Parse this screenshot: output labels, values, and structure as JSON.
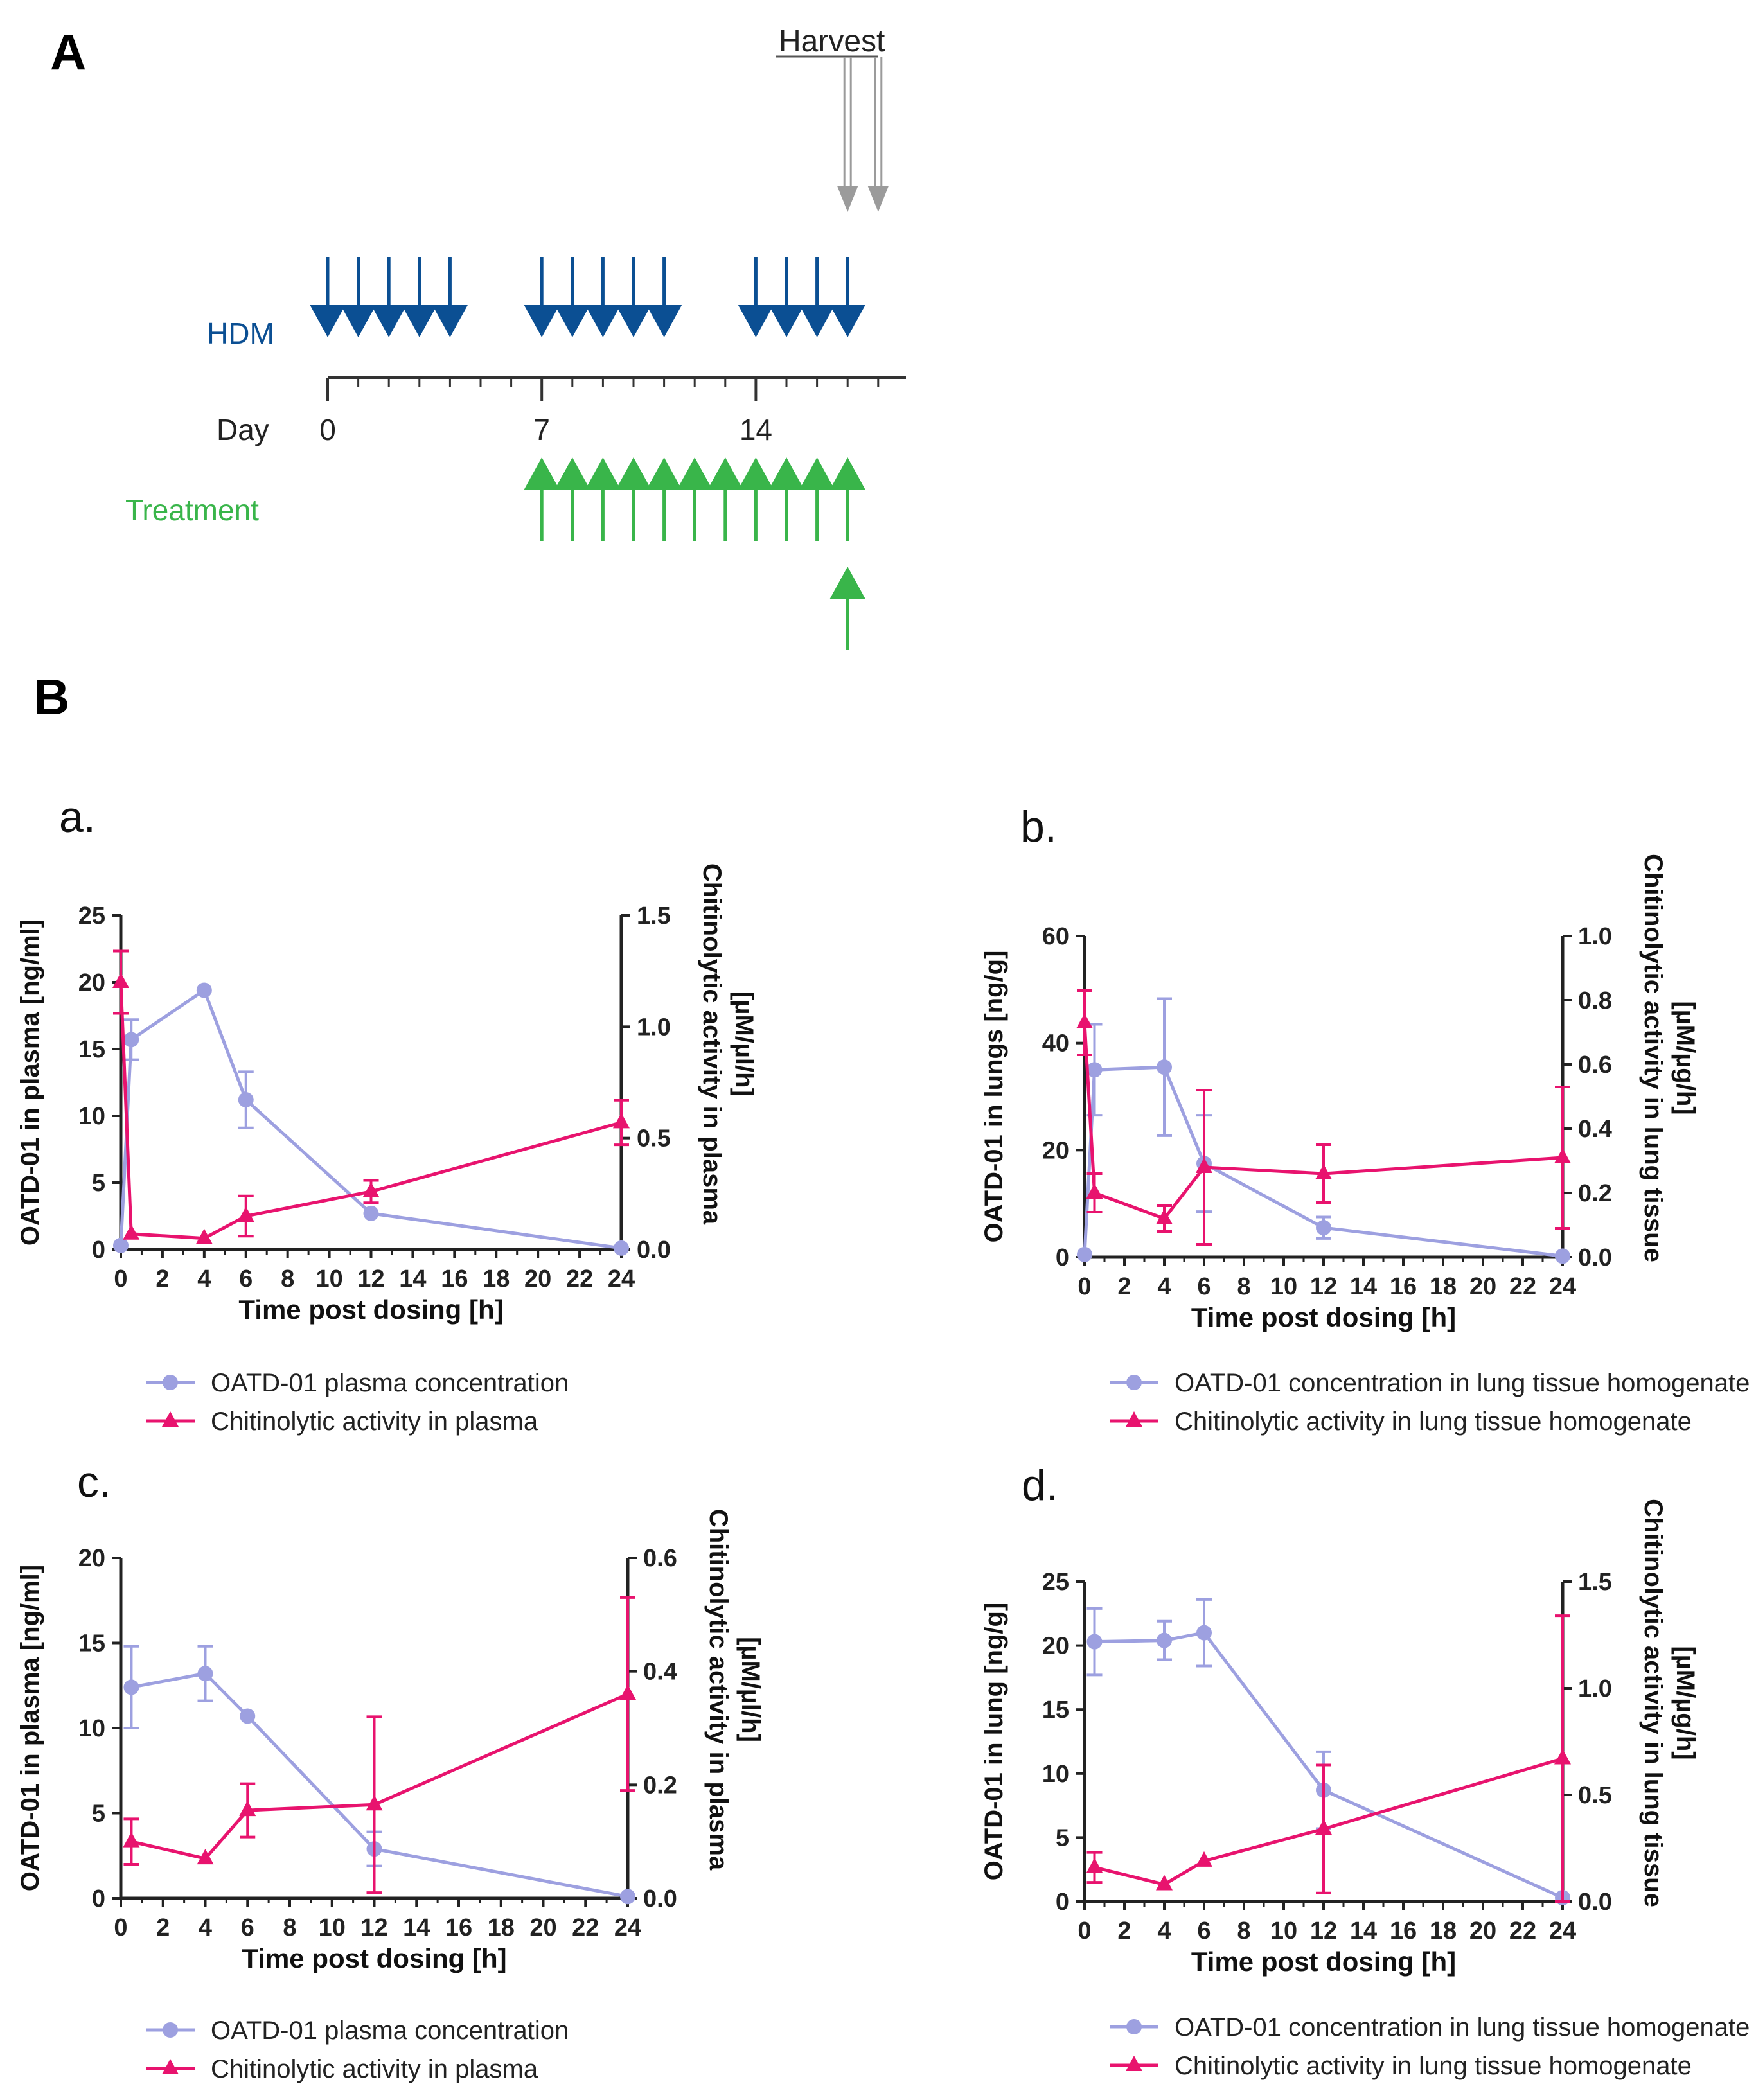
{
  "colors": {
    "hdm": "#0b4f93",
    "treat": "#39b54a",
    "harvest": "#9b9b9b",
    "conc": "#9da0e0",
    "chit": "#e8136e",
    "axis": "#222222"
  },
  "panelA": {
    "label": "A",
    "harvest_label": "Harvest",
    "hdm_label": "HDM",
    "day_label": "Day",
    "treatment_label": "Treatment",
    "day_ticks": [
      "0",
      "7",
      "14"
    ],
    "hdm_days": [
      0,
      1,
      2,
      3,
      4,
      7,
      8,
      9,
      10,
      11,
      14,
      15,
      16,
      17
    ],
    "treat_days": [
      7,
      8,
      9,
      10,
      11,
      12,
      13,
      14,
      15,
      16,
      17
    ],
    "treat_extra_day": 17,
    "harvest_days": [
      17,
      18
    ]
  },
  "panelB": {
    "label": "B"
  },
  "chart_data": [
    {
      "id": "a",
      "label": "a.",
      "type": "line",
      "xlabel": "Time post dosing [h]",
      "ylabel": "OATD-01 in plasma [ng/ml]",
      "y2label_line1": "Chitinolytic activity in plasma",
      "y2label_line2": "[µM/µl/h]",
      "xlim": [
        0,
        24
      ],
      "ylim": [
        0,
        25
      ],
      "y2lim": [
        0,
        1.5
      ],
      "xticks": [
        "0",
        "2",
        "4",
        "6",
        "8",
        "10",
        "12",
        "14",
        "16",
        "18",
        "20",
        "22",
        "24"
      ],
      "yticks": [
        "0",
        "5",
        "10",
        "15",
        "20",
        "25"
      ],
      "y2ticks": [
        "0.0",
        "0.5",
        "1.0",
        "1.5"
      ],
      "series": [
        {
          "name": "OATD-01 plasma concentration",
          "axis": "left",
          "marker": "circle",
          "x": [
            0,
            0.5,
            4,
            6,
            12,
            24
          ],
          "y": [
            0.3,
            15.7,
            19.4,
            11.2,
            2.7,
            0.1
          ],
          "err": [
            0,
            1.5,
            0,
            2.1,
            0,
            0
          ]
        },
        {
          "name": "Chitinolytic activity in plasma",
          "axis": "right",
          "marker": "triangle",
          "x": [
            0,
            0.5,
            4,
            6,
            12,
            24
          ],
          "y": [
            1.2,
            0.07,
            0.05,
            0.15,
            0.26,
            0.57
          ],
          "err": [
            0.14,
            0,
            0,
            0.09,
            0.05,
            0.1
          ]
        }
      ]
    },
    {
      "id": "b",
      "label": "b.",
      "type": "line",
      "xlabel": "Time post dosing [h]",
      "ylabel": "OATD-01 in lungs [ng/g]",
      "y2label_line1": "Chitinolytic activity in lung tissue",
      "y2label_line2": "[µM/µg/h]",
      "xlim": [
        0,
        24
      ],
      "ylim": [
        0,
        60
      ],
      "y2lim": [
        0,
        1.0
      ],
      "xticks": [
        "0",
        "2",
        "4",
        "6",
        "8",
        "10",
        "12",
        "14",
        "16",
        "18",
        "20",
        "22",
        "24"
      ],
      "yticks": [
        "0",
        "20",
        "40",
        "60"
      ],
      "y2ticks": [
        "0.0",
        "0.2",
        "0.4",
        "0.6",
        "0.8",
        "1.0"
      ],
      "series": [
        {
          "name": "OATD-01 concentration in lung tissue homogenate",
          "axis": "left",
          "marker": "circle",
          "x": [
            0,
            0.5,
            4,
            6,
            12,
            24
          ],
          "y": [
            0.5,
            35,
            35.5,
            17.5,
            5.5,
            0.2
          ],
          "err": [
            0,
            8.5,
            12.8,
            9,
            2,
            0
          ]
        },
        {
          "name": "Chitinolytic activity in lung tissue homogenate",
          "axis": "right",
          "marker": "triangle",
          "x": [
            0,
            0.5,
            4,
            6,
            12,
            24
          ],
          "y": [
            0.73,
            0.2,
            0.12,
            0.28,
            0.26,
            0.31
          ],
          "err": [
            0.1,
            0.06,
            0.04,
            0.24,
            0.09,
            0.22
          ]
        }
      ]
    },
    {
      "id": "c",
      "label": "c.",
      "type": "line",
      "xlabel": "Time post dosing [h]",
      "ylabel": "OATD-01 in plasma [ng/ml]",
      "y2label_line1": "Chitinolytic activity in plasma",
      "y2label_line2": "[µM/µl/h]",
      "xlim": [
        0,
        24
      ],
      "ylim": [
        0,
        20
      ],
      "y2lim": [
        0,
        0.6
      ],
      "xticks": [
        "0",
        "2",
        "4",
        "6",
        "8",
        "10",
        "12",
        "14",
        "16",
        "18",
        "20",
        "22",
        "24"
      ],
      "yticks": [
        "0",
        "5",
        "10",
        "15",
        "20"
      ],
      "y2ticks": [
        "0.0",
        "0.2",
        "0.4",
        "0.6"
      ],
      "series": [
        {
          "name": "OATD-01 plasma concentration",
          "axis": "left",
          "marker": "circle",
          "x": [
            0.5,
            4,
            6,
            12,
            24
          ],
          "y": [
            12.4,
            13.2,
            10.7,
            2.9,
            0.1
          ],
          "err": [
            2.4,
            1.6,
            0,
            1,
            0
          ]
        },
        {
          "name": "Chitinolytic activity in plasma",
          "axis": "right",
          "marker": "triangle",
          "x": [
            0.5,
            4,
            6,
            12,
            24
          ],
          "y": [
            0.1,
            0.07,
            0.155,
            0.165,
            0.36
          ],
          "err": [
            0.04,
            0,
            0.047,
            0.155,
            0.17
          ]
        }
      ]
    },
    {
      "id": "d",
      "label": "d.",
      "type": "line",
      "xlabel": "Time post dosing [h]",
      "ylabel": "OATD-01 in lung [ng/g]",
      "y2label_line1": "Chitinolytic activity in lung tissue",
      "y2label_line2": "[µM/µg/h]",
      "xlim": [
        0,
        24
      ],
      "ylim": [
        0,
        25
      ],
      "y2lim": [
        0,
        1.5
      ],
      "xticks": [
        "0",
        "2",
        "4",
        "6",
        "8",
        "10",
        "12",
        "14",
        "16",
        "18",
        "20",
        "22",
        "24"
      ],
      "yticks": [
        "0",
        "5",
        "10",
        "15",
        "20",
        "25"
      ],
      "y2ticks": [
        "0.0",
        "0.5",
        "1.0",
        "1.5"
      ],
      "series": [
        {
          "name": "OATD-01 concentration in lung tissue homogenate",
          "axis": "left",
          "marker": "circle",
          "x": [
            0.5,
            4,
            6,
            12,
            24
          ],
          "y": [
            20.3,
            20.4,
            21,
            8.7,
            0.3
          ],
          "err": [
            2.6,
            1.5,
            2.6,
            3,
            0
          ]
        },
        {
          "name": "Chitinolytic activity in lung tissue homogenate",
          "axis": "right",
          "marker": "triangle",
          "x": [
            0.5,
            4,
            6,
            12,
            24
          ],
          "y": [
            0.16,
            0.08,
            0.19,
            0.34,
            0.67
          ],
          "err": [
            0.07,
            0,
            0,
            0.3,
            0.67
          ]
        }
      ]
    }
  ]
}
